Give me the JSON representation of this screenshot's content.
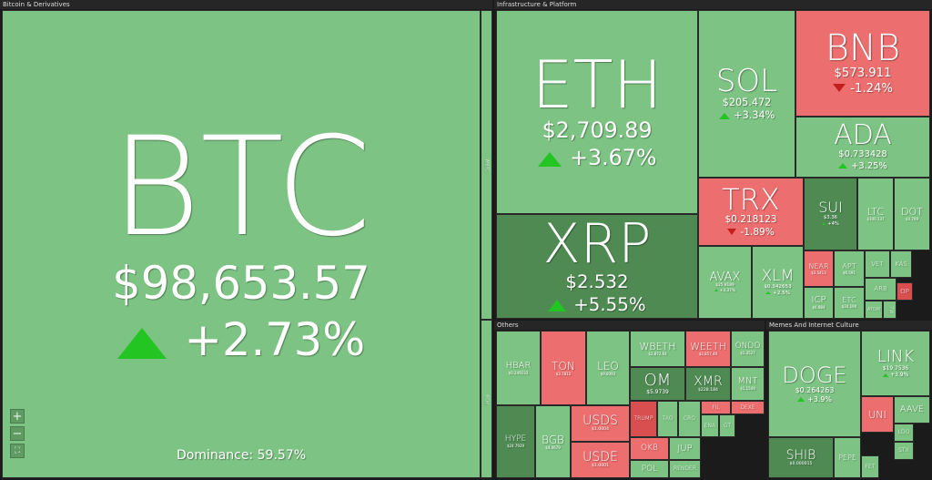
{
  "groups": [
    {
      "title": "Bitcoin & Derivatives",
      "tiles": [
        {
          "symbol": "BTC",
          "price": "$98,653.57",
          "change": "+2.73%",
          "note": "Dominance: 59.57%",
          "color": "#7dc383"
        },
        {
          "symbol": "WBTC",
          "color": "#7dc383"
        },
        {
          "symbol": "BCH",
          "color": "#7dc383"
        }
      ]
    },
    {
      "title": "Infrastructure & Platform",
      "tiles": [
        {
          "symbol": "ETH",
          "price": "$2,709.89",
          "change": "+3.67%",
          "color": "#7dc383"
        },
        {
          "symbol": "XRP",
          "price": "$2.532",
          "change": "+5.55%",
          "color": "#4f8a53"
        },
        {
          "symbol": "SOL",
          "price": "$205.472",
          "change": "+3.34%",
          "color": "#7dc383"
        },
        {
          "symbol": "BNB",
          "price": "$573.911",
          "change": "-1.24%",
          "color": "#ec6e6e"
        },
        {
          "symbol": "ADA",
          "price": "$0.733428",
          "change": "+3.25%",
          "color": "#7dc383"
        },
        {
          "symbol": "TRX",
          "price": "$0.218123",
          "change": "-1.89%",
          "color": "#ec6e6e"
        },
        {
          "symbol": "SUI",
          "price": "$3.36",
          "change": "+4%",
          "color": "#4f8a53"
        },
        {
          "symbol": "LTC",
          "price": "$100.137",
          "color": "#7dc383"
        },
        {
          "symbol": "DOT",
          "price": "$4.709",
          "color": "#7dc383"
        },
        {
          "symbol": "AVAX",
          "price": "$25.9189",
          "change": "+3.37%",
          "color": "#7dc383"
        },
        {
          "symbol": "XLM",
          "price": "$0.342653",
          "change": "+2.5%",
          "color": "#7dc383"
        },
        {
          "symbol": "NEAR",
          "price": "$3.5413",
          "color": "#ec6e6e"
        },
        {
          "symbol": "APT",
          "price": "$6.591",
          "color": "#7dc383"
        },
        {
          "symbol": "VET",
          "color": "#7dc383"
        },
        {
          "symbol": "KAS",
          "color": "#7dc383"
        },
        {
          "symbol": "ICP",
          "price": "$6.984",
          "color": "#7dc383"
        },
        {
          "symbol": "ETC",
          "price": "$24.190",
          "color": "#7dc383"
        },
        {
          "symbol": "ARB",
          "color": "#7dc383"
        },
        {
          "symbol": "OP",
          "color": "#d94f4f"
        },
        {
          "symbol": "ATOM",
          "color": "#7dc383"
        },
        {
          "symbol": "TIA",
          "color": "#7dc383"
        }
      ]
    },
    {
      "title": "Others",
      "tiles": [
        {
          "symbol": "HBAR",
          "price": "$0.249233",
          "color": "#7dc383"
        },
        {
          "symbol": "TON",
          "price": "$3.7812",
          "color": "#ec6e6e"
        },
        {
          "symbol": "LEO",
          "price": "$9.8393",
          "color": "#7dc383"
        },
        {
          "symbol": "HYPE",
          "price": "$24.7929",
          "color": "#4f8a53"
        },
        {
          "symbol": "BGB",
          "price": "$4.4679",
          "color": "#7dc383"
        },
        {
          "symbol": "USDS",
          "price": "$1.0004",
          "color": "#ec6e6e"
        },
        {
          "symbol": "USDE",
          "price": "$1.0001",
          "color": "#ec6e6e"
        },
        {
          "symbol": "WBETH",
          "price": "$2,872.64",
          "color": "#7dc383"
        },
        {
          "symbol": "WEETH",
          "price": "$2,857.40",
          "color": "#ec6e6e"
        },
        {
          "symbol": "ONDO",
          "price": "$1.3527",
          "color": "#7dc383"
        },
        {
          "symbol": "OM",
          "price": "$5.9739",
          "color": "#4f8a53"
        },
        {
          "symbol": "XMR",
          "price": "$228.184",
          "color": "#4f8a53"
        },
        {
          "symbol": "MNT",
          "price": "$1.1549",
          "color": "#7dc383"
        },
        {
          "symbol": "TRUMP",
          "color": "#d94f4f"
        },
        {
          "symbol": "TAO",
          "color": "#7dc383"
        },
        {
          "symbol": "CRO",
          "color": "#7dc383"
        },
        {
          "symbol": "FIL",
          "color": "#ec6e6e"
        },
        {
          "symbol": "DEXE",
          "color": "#ec6e6e"
        },
        {
          "symbol": "ENA",
          "color": "#7dc383"
        },
        {
          "symbol": "GT",
          "color": "#7dc383"
        },
        {
          "symbol": "OKB",
          "color": "#ec6e6e"
        },
        {
          "symbol": "JUP",
          "color": "#7dc383"
        },
        {
          "symbol": "POL",
          "color": "#7dc383"
        },
        {
          "symbol": "RENDER",
          "color": "#7dc383"
        }
      ]
    },
    {
      "title": "Memes And Internet Culture",
      "tiles": [
        {
          "symbol": "DOGE",
          "price": "$0.264263",
          "change": "+3.9%",
          "color": "#7dc383"
        },
        {
          "symbol": "SHIB",
          "price": "$0.000015",
          "color": "#4f8a53"
        },
        {
          "symbol": "PEPE",
          "color": "#7dc383"
        },
        {
          "symbol": "LINK",
          "price": "$19.7536",
          "change": "+3.9%",
          "color": "#7dc383"
        },
        {
          "symbol": "UNI",
          "color": "#ec6e6e"
        },
        {
          "symbol": "AAVE",
          "color": "#7dc383"
        },
        {
          "symbol": "LDO",
          "color": "#7dc383"
        },
        {
          "symbol": "STX",
          "color": "#7dc383"
        },
        {
          "symbol": "FET",
          "color": "#7dc383"
        }
      ]
    }
  ]
}
